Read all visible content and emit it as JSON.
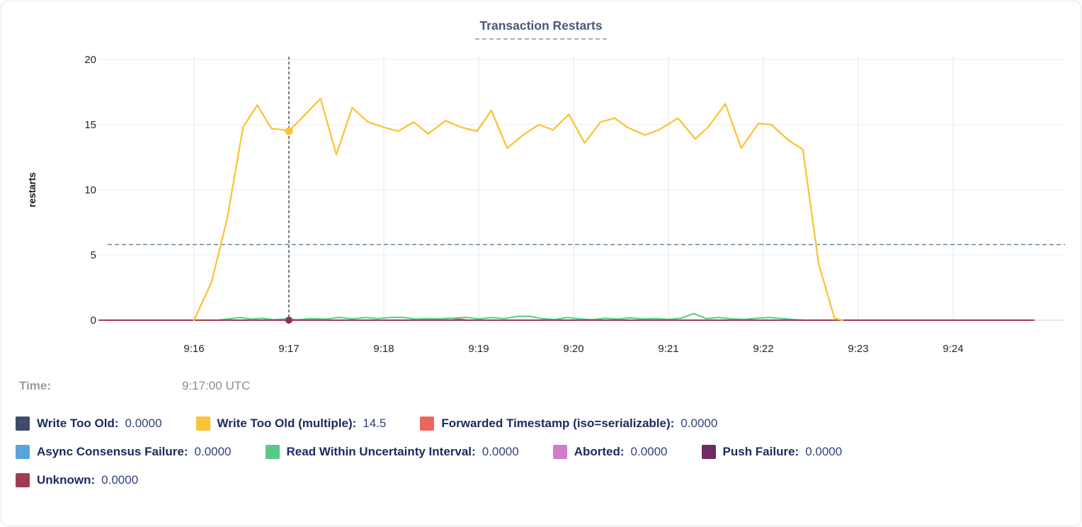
{
  "title": "Transaction Restarts",
  "time_row": {
    "label": "Time:",
    "value": "9:17:00 UTC"
  },
  "chart_data": {
    "type": "line",
    "title": "Transaction Restarts",
    "xlabel": "",
    "ylabel": "restarts",
    "ylim": [
      0,
      20
    ],
    "y_ticks": [
      0,
      5,
      10,
      15,
      20
    ],
    "grid": true,
    "legend_position": "bottom",
    "x_unit": "seconds since 9:15:00 UTC",
    "x_domain_seconds": [
      0,
      591
    ],
    "x_ticks": [
      {
        "t": 60,
        "label": "9:16"
      },
      {
        "t": 120,
        "label": "9:17"
      },
      {
        "t": 180,
        "label": "9:18"
      },
      {
        "t": 240,
        "label": "9:19"
      },
      {
        "t": 300,
        "label": "9:20"
      },
      {
        "t": 360,
        "label": "9:21"
      },
      {
        "t": 420,
        "label": "9:22"
      },
      {
        "t": 480,
        "label": "9:23"
      },
      {
        "t": 540,
        "label": "9:24"
      }
    ],
    "avg_line": {
      "v": 5.8,
      "color": "#5d7d9c"
    },
    "hover": {
      "t": 120,
      "time_label": "9:17:00 UTC",
      "line_color": "#2d4a60",
      "points": [
        {
          "series": "Write Too Old (multiple)",
          "v": 14.5
        },
        {
          "series": "Unknown",
          "v": 0
        }
      ]
    },
    "series": [
      {
        "name": "Write Too Old",
        "color": "#3e4c69",
        "display_value": "0.0000",
        "points": [
          [
            0,
            0
          ],
          [
            591,
            0
          ]
        ]
      },
      {
        "name": "Write Too Old (multiple)",
        "color": "#fbc337",
        "display_value": "14.5",
        "points": [
          [
            60,
            0
          ],
          [
            71,
            2.9
          ],
          [
            81,
            7.8
          ],
          [
            91,
            14.8
          ],
          [
            100,
            16.5
          ],
          [
            109,
            14.7
          ],
          [
            117,
            14.6
          ],
          [
            120,
            14.5
          ],
          [
            140,
            17.0
          ],
          [
            150,
            12.7
          ],
          [
            160,
            16.3
          ],
          [
            170,
            15.2
          ],
          [
            180,
            14.8
          ],
          [
            189,
            14.5
          ],
          [
            199,
            15.2
          ],
          [
            208,
            14.3
          ],
          [
            219,
            15.3
          ],
          [
            229,
            14.8
          ],
          [
            239,
            14.5
          ],
          [
            248,
            16.1
          ],
          [
            258,
            13.2
          ],
          [
            268,
            14.2
          ],
          [
            278,
            15.0
          ],
          [
            287,
            14.6
          ],
          [
            297,
            15.8
          ],
          [
            307,
            13.6
          ],
          [
            317,
            15.2
          ],
          [
            326,
            15.5
          ],
          [
            334,
            14.8
          ],
          [
            345,
            14.2
          ],
          [
            354,
            14.6
          ],
          [
            366,
            15.5
          ],
          [
            377,
            13.9
          ],
          [
            385,
            14.8
          ],
          [
            396,
            16.6
          ],
          [
            406,
            13.2
          ],
          [
            417,
            15.1
          ],
          [
            425,
            15.0
          ],
          [
            436,
            13.8
          ],
          [
            445,
            13.1
          ],
          [
            455,
            4.3
          ],
          [
            465,
            0.15
          ],
          [
            470,
            0
          ]
        ]
      },
      {
        "name": "Forwarded Timestamp (iso=serializable)",
        "color": "#ec665d",
        "display_value": "0.0000",
        "points": [
          [
            0,
            0
          ],
          [
            208,
            0
          ],
          [
            215,
            0.1
          ],
          [
            221,
            0.15
          ],
          [
            227,
            0.1
          ],
          [
            233,
            0
          ],
          [
            591,
            0
          ]
        ]
      },
      {
        "name": "Async Consensus Failure",
        "color": "#5ba3dc",
        "display_value": "0.0000",
        "points": [
          [
            0,
            0
          ],
          [
            591,
            0
          ]
        ]
      },
      {
        "name": "Read Within Uncertainty Interval",
        "color": "#58ca86",
        "display_value": "0.0000",
        "points": [
          [
            75,
            0
          ],
          [
            82,
            0.1
          ],
          [
            89,
            0.2
          ],
          [
            96,
            0.08
          ],
          [
            103,
            0.15
          ],
          [
            110,
            0.04
          ],
          [
            118,
            0.1
          ],
          [
            126,
            0.03
          ],
          [
            134,
            0.12
          ],
          [
            143,
            0.08
          ],
          [
            152,
            0.22
          ],
          [
            160,
            0.1
          ],
          [
            168,
            0.2
          ],
          [
            176,
            0.12
          ],
          [
            184,
            0.2
          ],
          [
            192,
            0.22
          ],
          [
            200,
            0.08
          ],
          [
            208,
            0.12
          ],
          [
            216,
            0.1
          ],
          [
            224,
            0.15
          ],
          [
            232,
            0.22
          ],
          [
            240,
            0.1
          ],
          [
            248,
            0.2
          ],
          [
            256,
            0.12
          ],
          [
            264,
            0.28
          ],
          [
            272,
            0.3
          ],
          [
            280,
            0.12
          ],
          [
            288,
            0.05
          ],
          [
            296,
            0.2
          ],
          [
            304,
            0.1
          ],
          [
            312,
            0.04
          ],
          [
            320,
            0.15
          ],
          [
            328,
            0.08
          ],
          [
            336,
            0.18
          ],
          [
            344,
            0.1
          ],
          [
            352,
            0.12
          ],
          [
            360,
            0.06
          ],
          [
            368,
            0.15
          ],
          [
            376,
            0.5
          ],
          [
            384,
            0.12
          ],
          [
            392,
            0.2
          ],
          [
            400,
            0.1
          ],
          [
            408,
            0.06
          ],
          [
            416,
            0.15
          ],
          [
            424,
            0.2
          ],
          [
            432,
            0.12
          ],
          [
            440,
            0.04
          ],
          [
            446,
            0
          ]
        ]
      },
      {
        "name": "Aborted",
        "color": "#d07fc6",
        "display_value": "0.0000",
        "points": [
          [
            0,
            0
          ],
          [
            591,
            0
          ]
        ]
      },
      {
        "name": "Push Failure",
        "color": "#702b64",
        "display_value": "0.0000",
        "points": [
          [
            0,
            0
          ],
          [
            591,
            0
          ]
        ]
      },
      {
        "name": "Unknown",
        "color": "#a23c51",
        "display_value": "0.0000",
        "points": [
          [
            0,
            0
          ],
          [
            591,
            0
          ]
        ]
      }
    ]
  }
}
